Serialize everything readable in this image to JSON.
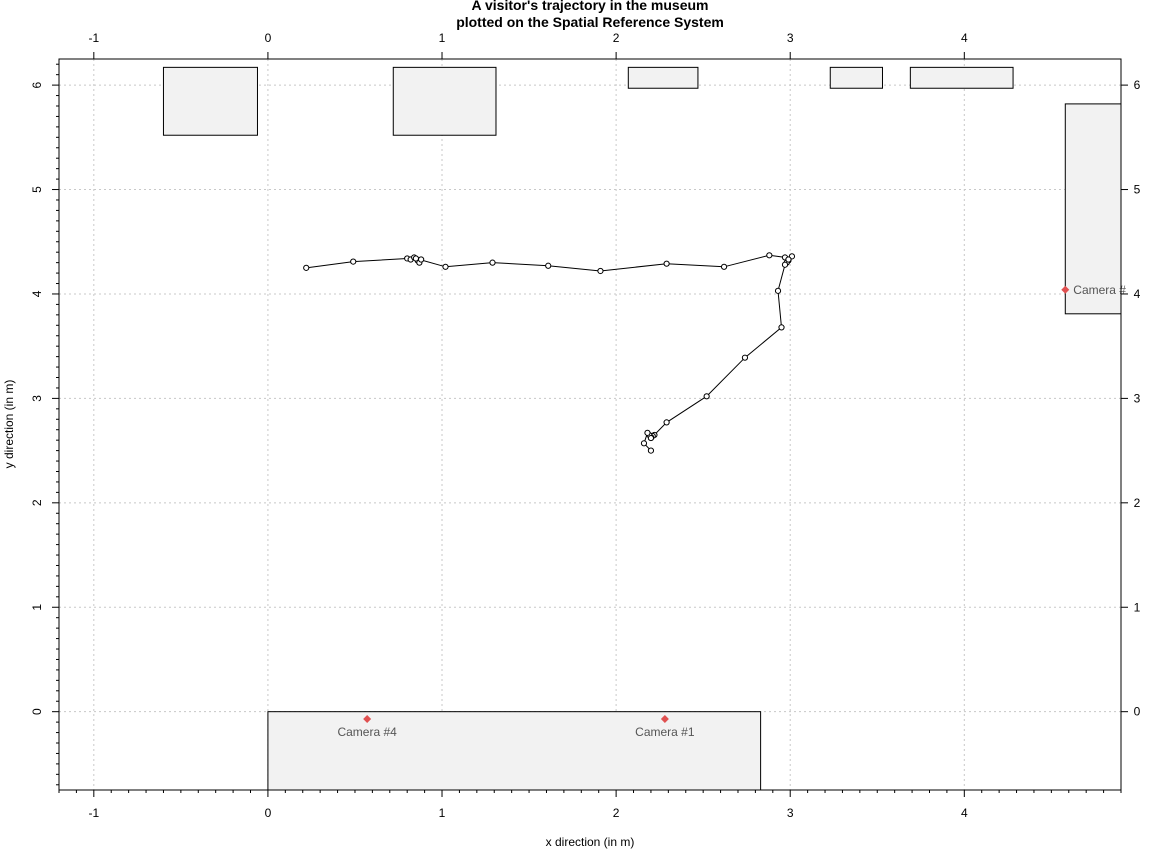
{
  "chart_data": {
    "type": "scatter",
    "title": "A visitor's trajectory in the museum",
    "subtitle": "plotted on the Spatial Reference System",
    "xlabel": "x direction (in m)",
    "ylabel": "y direction (in m)",
    "xlim": [
      -1.2,
      4.9
    ],
    "ylim": [
      -0.75,
      6.25
    ],
    "grid": true,
    "x_ticks": [
      -1,
      0,
      1,
      2,
      3,
      4
    ],
    "y_ticks": [
      0,
      1,
      2,
      3,
      4,
      5,
      6
    ],
    "x_tick_labels": [
      "-1",
      "0",
      "1",
      "2",
      "3",
      "4"
    ],
    "y_tick_labels": [
      "0",
      "1",
      "2",
      "3",
      "4",
      "5",
      "6"
    ],
    "trajectory": {
      "x": [
        0.22,
        0.49,
        0.8,
        0.82,
        0.84,
        0.86,
        0.87,
        0.88,
        0.85,
        1.02,
        1.29,
        1.61,
        1.91,
        2.29,
        2.62,
        2.88,
        2.97,
        2.99,
        3.01,
        2.98,
        2.99,
        2.97,
        2.93,
        2.95,
        2.74,
        2.52,
        2.29,
        2.22,
        2.21,
        2.2,
        2.19,
        2.2,
        2.18,
        2.16,
        2.2
      ],
      "y": [
        4.25,
        4.31,
        4.34,
        4.33,
        4.35,
        4.32,
        4.3,
        4.33,
        4.34,
        4.26,
        4.3,
        4.27,
        4.22,
        4.29,
        4.26,
        4.37,
        4.35,
        4.32,
        4.36,
        4.3,
        4.33,
        4.28,
        4.03,
        3.68,
        3.39,
        3.02,
        2.77,
        2.65,
        2.64,
        2.63,
        2.65,
        2.62,
        2.67,
        2.57,
        2.5
      ]
    },
    "objects": [
      {
        "x0": -0.6,
        "x1": -0.06,
        "y0": 5.52,
        "y1": 6.17
      },
      {
        "x0": 0.72,
        "x1": 1.31,
        "y0": 5.52,
        "y1": 6.17
      },
      {
        "x0": 2.07,
        "x1": 2.47,
        "y0": 5.97,
        "y1": 6.17
      },
      {
        "x0": 3.23,
        "x1": 3.53,
        "y0": 5.97,
        "y1": 6.17
      },
      {
        "x0": 3.69,
        "x1": 4.28,
        "y0": 5.97,
        "y1": 6.17
      },
      {
        "x0": 4.58,
        "x1": 4.95,
        "y0": 3.81,
        "y1": 5.82
      },
      {
        "x0": 0.0,
        "x1": 2.83,
        "y0": -0.9,
        "y1": 0.0
      }
    ],
    "cameras": [
      {
        "label": "Camera #4",
        "x": 0.57,
        "y": -0.07,
        "label_pos": "below"
      },
      {
        "label": "Camera #1",
        "x": 2.28,
        "y": -0.07,
        "label_pos": "below"
      },
      {
        "label": "Camera #",
        "x": 4.58,
        "y": 4.04,
        "label_pos": "right"
      }
    ],
    "colors": {
      "camera_marker": "#e05050",
      "camera_label": "#555555",
      "object_fill": "#f2f2f2",
      "grid": "#c8c8c8"
    }
  }
}
